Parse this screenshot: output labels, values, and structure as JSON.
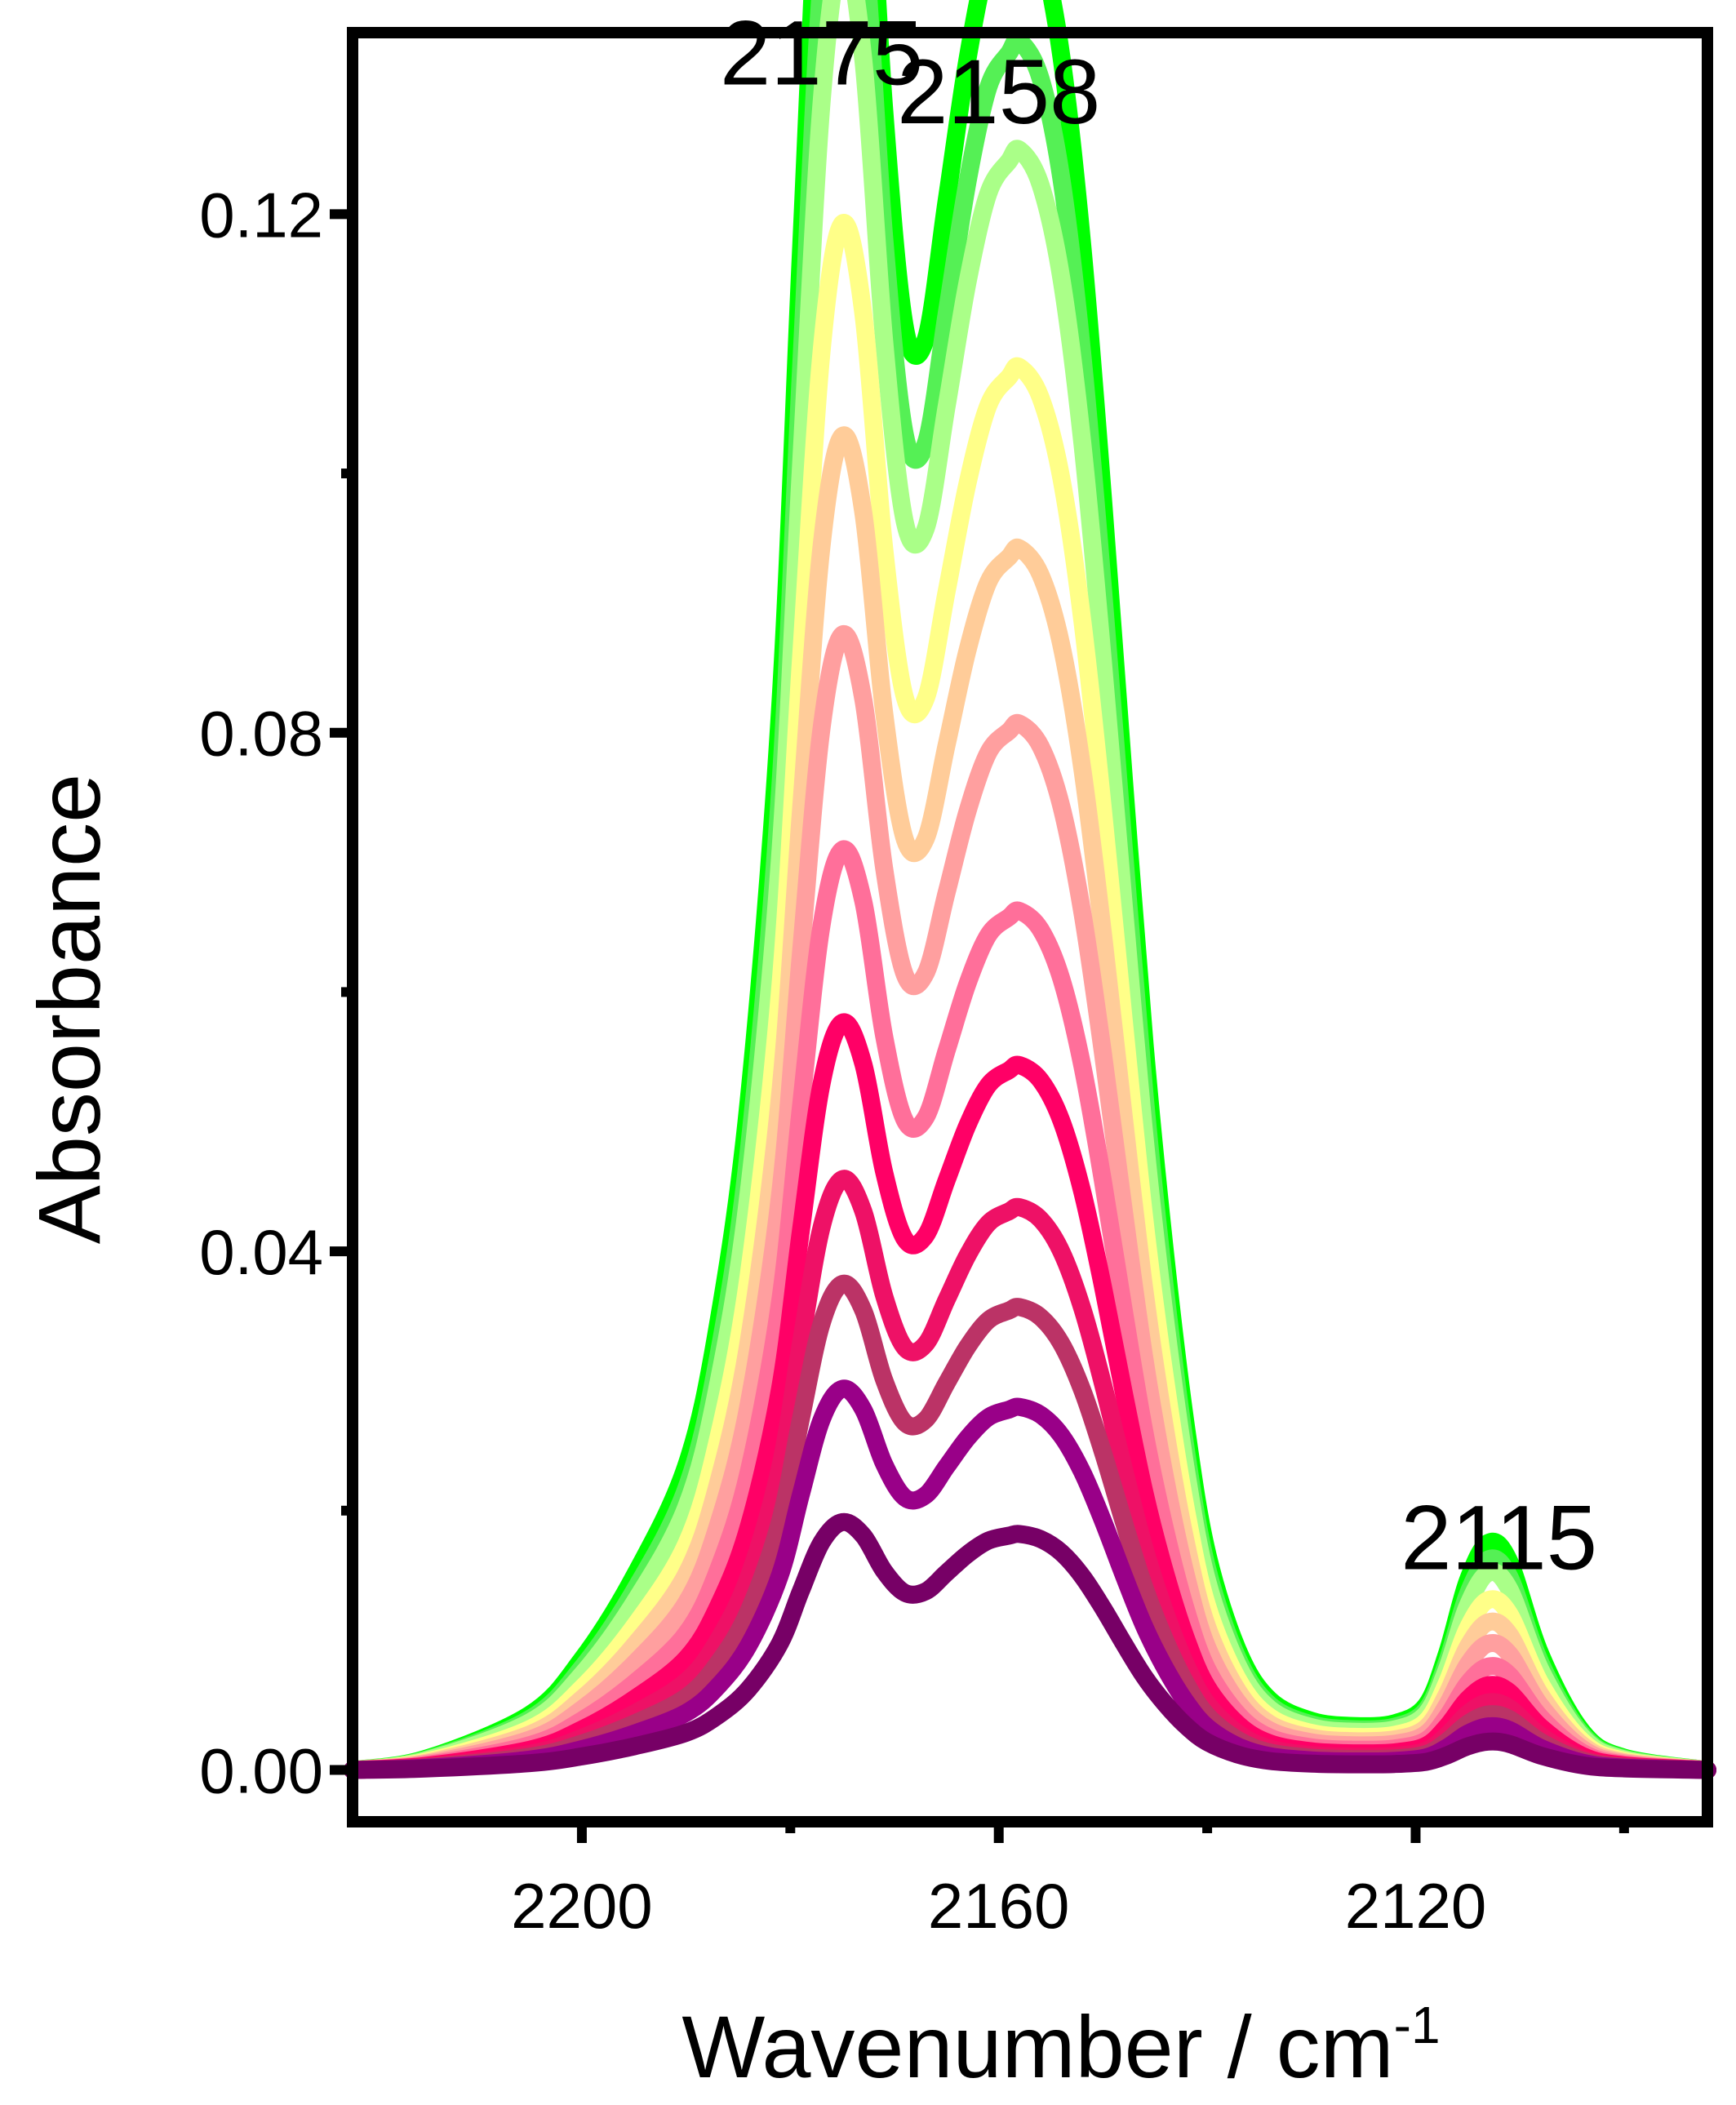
{
  "chart_data": {
    "type": "line",
    "title": "",
    "xlabel": "Wavenumber / cm",
    "xlabel_superscript": "-1",
    "ylabel": "Absorbance",
    "xlim": [
      2222,
      2092
    ],
    "ylim": [
      -0.004,
      0.134
    ],
    "x_reversed": true,
    "grid": false,
    "legend": "none",
    "x_ticks": [
      2200,
      2160,
      2120
    ],
    "x_tick_labels": [
      "2200",
      "2160",
      "2120"
    ],
    "y_ticks": [
      0.0,
      0.04,
      0.08,
      0.12
    ],
    "y_tick_labels": [
      "0.00",
      "0.04",
      "0.08",
      "0.12"
    ],
    "annotations": [
      {
        "text": "2175",
        "x": 2177,
        "y": 0.13
      },
      {
        "text": "2158",
        "x": 2160,
        "y": 0.127
      },
      {
        "text": "2115",
        "x": 2112,
        "y": 0.0155
      }
    ],
    "series_shape": {
      "x": [
        2222,
        2215,
        2205,
        2200,
        2195,
        2190,
        2187,
        2184,
        2181,
        2179,
        2177,
        2175,
        2173,
        2171,
        2169,
        2167,
        2165,
        2163,
        2161,
        2159,
        2158,
        2156,
        2154,
        2152,
        2150,
        2148,
        2146,
        2144,
        2142,
        2140,
        2137,
        2134,
        2130,
        2126,
        2122,
        2119,
        2117,
        2115,
        2113,
        2111,
        2108,
        2104,
        2100,
        2092
      ],
      "peak_a_at_2175": [
        0,
        0.0004,
        0.002,
        0.004,
        0.007,
        0.011,
        0.016,
        0.026,
        0.045,
        0.07,
        0.095,
        0.105,
        0.095,
        0.07,
        0.05,
        0.042,
        0.043,
        0.045,
        0.046,
        0.046,
        0.046,
        0.045,
        0.042,
        0.037,
        0.03,
        0.023,
        0.016,
        0.011,
        0.007,
        0.0045,
        0.0025,
        0.0016,
        0.0012,
        0.0011,
        0.0012,
        0.0018,
        0.0034,
        0.0056,
        0.0068,
        0.0062,
        0.0035,
        0.0012,
        0.0004,
        0
      ],
      "peak_b_at_2158": [
        0,
        0.0004,
        0.002,
        0.004,
        0.007,
        0.011,
        0.016,
        0.022,
        0.03,
        0.036,
        0.04,
        0.042,
        0.044,
        0.048,
        0.055,
        0.064,
        0.074,
        0.083,
        0.09,
        0.093,
        0.094,
        0.092,
        0.087,
        0.078,
        0.066,
        0.052,
        0.039,
        0.028,
        0.019,
        0.012,
        0.0065,
        0.0037,
        0.0025,
        0.0022,
        0.0023,
        0.003,
        0.0052,
        0.0084,
        0.01,
        0.0092,
        0.005,
        0.0016,
        0.0005,
        0
      ],
      "shape_note": "each curve = a*peak_a + b*peak_b (values normalized so a=b=1 is near the top curve)"
    },
    "series": [
      {
        "color": "#00ff00",
        "a": 1.18,
        "b": 0.95,
        "width": 22
      },
      {
        "color": "#55f055",
        "a": 1.08,
        "b": 0.89,
        "width": 22
      },
      {
        "color": "#aaff88",
        "a": 1.0,
        "b": 0.84,
        "width": 22
      },
      {
        "color": "#ffff88",
        "a": 0.84,
        "b": 0.74,
        "width": 22
      },
      {
        "color": "#ffcc99",
        "a": 0.72,
        "b": 0.65,
        "width": 22
      },
      {
        "color": "#ff9f9f",
        "a": 0.61,
        "b": 0.56,
        "width": 22
      },
      {
        "color": "#ff6f9a",
        "a": 0.49,
        "b": 0.465,
        "width": 22
      },
      {
        "color": "#ff0066",
        "a": 0.395,
        "b": 0.385,
        "width": 22
      },
      {
        "color": "#ee1166",
        "a": 0.31,
        "b": 0.31,
        "width": 22
      },
      {
        "color": "#bb3366",
        "a": 0.255,
        "b": 0.255,
        "width": 22
      },
      {
        "color": "#990088",
        "a": 0.2,
        "b": 0.2,
        "width": 22
      },
      {
        "color": "#770066",
        "a": 0.13,
        "b": 0.13,
        "width": 22
      }
    ]
  }
}
